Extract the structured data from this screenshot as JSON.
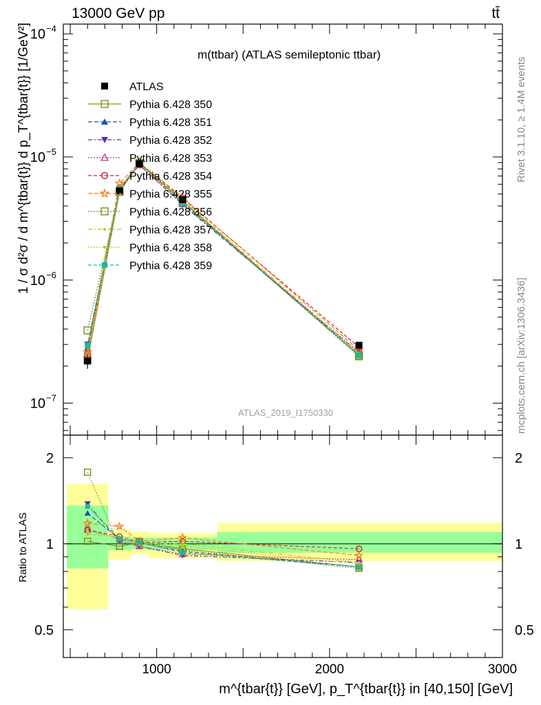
{
  "header": {
    "beam": "13000 GeV pp",
    "process": "tt̄"
  },
  "side_text": {
    "rivet": "Rivet 3.1.10, ≥ 1.4M events",
    "site": "mcplots.cern.ch [arXiv:1306.3436]"
  },
  "chart_data": [
    {
      "type": "line",
      "title": "m(ttbar) (ATLAS semileptonic ttbar)",
      "ylabel": "1 / σ d²σ / d m^{tbar{t}} d p_T^{tbar{t}} [1/GeV²]",
      "xlabel": "m^{tbar{t}} [GeV], p_T^{tbar{t}} in [40,150] [GeV]",
      "watermark": "ATLAS_2019_I1750330",
      "yscale": "log",
      "xlim": [
        460,
        3000
      ],
      "ylim": [
        5.5e-08,
        0.00012
      ],
      "y_ticks": [
        {
          "v": 1e-07,
          "base": "10",
          "exp": "−7"
        },
        {
          "v": 1e-06,
          "base": "10",
          "exp": "−6"
        },
        {
          "v": 1e-05,
          "base": "10",
          "exp": "−5"
        },
        {
          "v": 0.0001,
          "base": "10",
          "exp": "−4"
        }
      ],
      "x": [
        600,
        785,
        900,
        1150,
        2170
      ],
      "x_edges": [
        450,
        720,
        850,
        950,
        1350,
        3000
      ],
      "data": {
        "name": "ATLAS",
        "values": [
          2.2e-07,
          5.3e-06,
          8.8e-06,
          4.5e-06,
          2.95e-07
        ],
        "errors": [
          3e-08,
          3e-07,
          3e-07,
          2.5e-07,
          1.5e-08
        ]
      },
      "series": [
        {
          "name": "Pythia 6.428 350",
          "color": "#8a8a1e",
          "marker": "square-open",
          "dash": "",
          "values": [
            2.25e-07,
            5.2e-06,
            8.9e-06,
            4.4e-06,
            2.45e-07
          ]
        },
        {
          "name": "Pythia 6.428 351",
          "color": "#1f4fbf",
          "marker": "triangle-up",
          "dash": "6,3",
          "values": [
            2.8e-07,
            5.5e-06,
            8.9e-06,
            4.3e-06,
            2.45e-07
          ]
        },
        {
          "name": "Pythia 6.428 352",
          "color": "#5a2bb0",
          "marker": "triangle-down",
          "dash": "6,3,2,3",
          "values": [
            3e-07,
            5.4e-06,
            8.6e-06,
            4.1e-06,
            2.55e-07
          ]
        },
        {
          "name": "Pythia 6.428 353",
          "color": "#c0308f",
          "marker": "triangle-open",
          "dash": "2,2",
          "values": [
            2.5e-07,
            5.5e-06,
            8.6e-06,
            4.15e-06,
            2.6e-07
          ]
        },
        {
          "name": "Pythia 6.428 354",
          "color": "#d0202a",
          "marker": "circle-open",
          "dash": "5,3",
          "values": [
            2.5e-07,
            5.6e-06,
            8.9e-06,
            4.6e-06,
            2.85e-07
          ]
        },
        {
          "name": "Pythia 6.428 355",
          "color": "#ef7f1a",
          "marker": "star-open",
          "dash": "6,3",
          "values": [
            2.6e-07,
            6.1e-06,
            9e-06,
            4.7e-06,
            2.7e-07
          ]
        },
        {
          "name": "Pythia 6.428 356",
          "color": "#7f8a1a",
          "marker": "square-open",
          "dash": "2,2",
          "values": [
            3.9e-07,
            5.2e-06,
            8.9e-06,
            4.3e-06,
            2.4e-07
          ]
        },
        {
          "name": "Pythia 6.428 357",
          "color": "#d8b41e",
          "marker": "dot",
          "dash": "6,3,2,3",
          "values": [
            2.4e-07,
            5.6e-06,
            8.8e-06,
            4.5e-06,
            2.55e-07
          ]
        },
        {
          "name": "Pythia 6.428 358",
          "color": "#b8cf1a",
          "marker": "dot",
          "dash": "2,2",
          "values": [
            2.45e-07,
            5.6e-06,
            8.7e-06,
            4.4e-06,
            2.5e-07
          ]
        },
        {
          "name": "Pythia 6.428 359",
          "color": "#20b89a",
          "marker": "square-filled",
          "dash": "5,3",
          "values": [
            2.95e-07,
            5.5e-06,
            8.9e-06,
            4.2e-06,
            2.45e-07
          ]
        }
      ]
    },
    {
      "type": "line",
      "ylabel": "Ratio to ATLAS",
      "yscale": "log",
      "xlim": [
        460,
        3000
      ],
      "ylim": [
        0.4,
        2.4
      ],
      "y_ticks": [
        0.5,
        1,
        2
      ],
      "x_ticks": [
        1000,
        2000,
        3000
      ],
      "bands": [
        {
          "x0": 480,
          "x1": 720,
          "y0": 0.59,
          "y1": 1.62,
          "inner_y0": 0.82,
          "inner_y1": 1.36
        },
        {
          "x0": 720,
          "x1": 850,
          "y0": 0.88,
          "y1": 1.12,
          "inner_y0": 0.95,
          "inner_y1": 1.06
        },
        {
          "x0": 850,
          "x1": 950,
          "y0": 0.92,
          "y1": 1.1,
          "inner_y0": 0.96,
          "inner_y1": 1.05
        },
        {
          "x0": 950,
          "x1": 1350,
          "y0": 0.89,
          "y1": 1.09,
          "inner_y0": 0.95,
          "inner_y1": 1.05
        },
        {
          "x0": 1350,
          "x1": 3000,
          "y0": 0.87,
          "y1": 1.18,
          "inner_y0": 0.93,
          "inner_y1": 1.1
        }
      ],
      "ratios": [
        [
          1.02,
          0.98,
          1.01,
          0.96,
          0.83
        ],
        [
          1.28,
          1.04,
          1.01,
          0.94,
          0.83
        ],
        [
          1.38,
          1.02,
          0.98,
          0.91,
          0.86
        ],
        [
          1.12,
          1.04,
          0.98,
          0.92,
          0.88
        ],
        [
          1.12,
          1.06,
          1.01,
          1.02,
          0.96
        ],
        [
          1.18,
          1.15,
          1.02,
          1.05,
          0.91
        ],
        [
          1.78,
          0.98,
          1.02,
          0.95,
          0.82
        ],
        [
          1.08,
          1.06,
          1.0,
          1.0,
          0.86
        ],
        [
          1.1,
          1.05,
          0.99,
          0.98,
          0.85
        ],
        [
          1.35,
          1.04,
          1.01,
          0.93,
          0.83
        ]
      ]
    }
  ]
}
